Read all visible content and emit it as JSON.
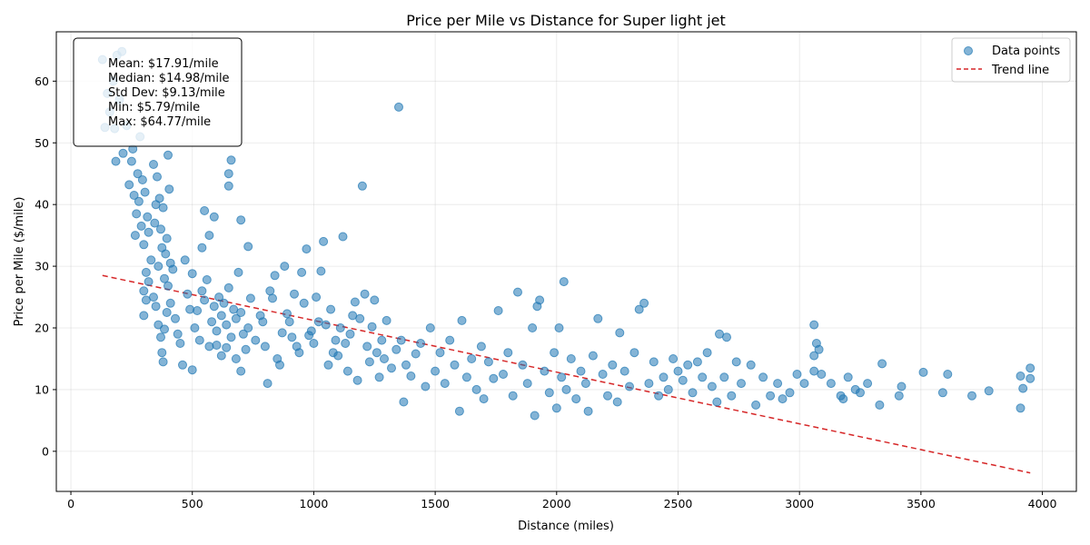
{
  "chart_data": {
    "type": "scatter",
    "title": "Price per Mile vs Distance for Super light jet",
    "xlabel": "Distance (miles)",
    "ylabel": "Price per Mile ($/mile)",
    "xlim": [
      -60,
      4140
    ],
    "ylim": [
      -6.5,
      68
    ],
    "x_ticks": [
      0,
      500,
      1000,
      1500,
      2000,
      2500,
      3000,
      3500,
      4000
    ],
    "y_ticks": [
      0,
      10,
      20,
      30,
      40,
      50,
      60
    ],
    "grid": true,
    "legend_position": "top-right",
    "legend": [
      {
        "label": "Data points",
        "marker": "circle",
        "color": "#1f77b4"
      },
      {
        "label": "Trend line",
        "marker": "dashed-line",
        "color": "#d62728"
      }
    ],
    "stats": [
      "Mean: $17.91/mile",
      "Median: $14.98/mile",
      "Std Dev: $9.13/mile",
      "Min: $5.79/mile",
      "Max: $64.77/mile"
    ],
    "trend_line": {
      "x": [
        130,
        3950
      ],
      "y": [
        28.5,
        -3.5
      ]
    },
    "point_color": "#1f77b4",
    "points": [
      [
        130,
        63.5
      ],
      [
        140,
        52.5
      ],
      [
        150,
        58
      ],
      [
        160,
        55
      ],
      [
        175,
        60
      ],
      [
        180,
        52.3
      ],
      [
        185,
        47
      ],
      [
        190,
        64.2
      ],
      [
        200,
        57
      ],
      [
        210,
        64.8
      ],
      [
        215,
        48.3
      ],
      [
        230,
        52.8
      ],
      [
        240,
        43.2
      ],
      [
        250,
        47
      ],
      [
        255,
        49
      ],
      [
        260,
        41.5
      ],
      [
        265,
        35
      ],
      [
        270,
        38.5
      ],
      [
        275,
        45
      ],
      [
        280,
        40.5
      ],
      [
        285,
        51
      ],
      [
        290,
        36.5
      ],
      [
        295,
        44
      ],
      [
        300,
        33.5
      ],
      [
        305,
        42
      ],
      [
        310,
        29
      ],
      [
        315,
        38
      ],
      [
        320,
        35.5
      ],
      [
        330,
        31
      ],
      [
        340,
        46.5
      ],
      [
        345,
        37
      ],
      [
        350,
        40
      ],
      [
        355,
        44.5
      ],
      [
        360,
        30
      ],
      [
        365,
        41
      ],
      [
        370,
        36
      ],
      [
        375,
        33
      ],
      [
        380,
        39.5
      ],
      [
        385,
        28
      ],
      [
        390,
        32
      ],
      [
        395,
        34.5
      ],
      [
        400,
        48
      ],
      [
        405,
        42.5
      ],
      [
        410,
        30.5
      ],
      [
        300,
        26
      ],
      [
        300,
        22
      ],
      [
        310,
        24.5
      ],
      [
        320,
        27.5
      ],
      [
        340,
        25
      ],
      [
        350,
        23.5
      ],
      [
        360,
        20.5
      ],
      [
        370,
        18.5
      ],
      [
        375,
        16
      ],
      [
        380,
        14.5
      ],
      [
        385,
        19.8
      ],
      [
        395,
        22.5
      ],
      [
        400,
        26.8
      ],
      [
        410,
        24
      ],
      [
        420,
        29.5
      ],
      [
        430,
        21.5
      ],
      [
        440,
        19
      ],
      [
        450,
        17.5
      ],
      [
        460,
        14
      ],
      [
        470,
        31
      ],
      [
        480,
        25.5
      ],
      [
        490,
        23
      ],
      [
        500,
        28.8
      ],
      [
        510,
        20
      ],
      [
        520,
        22.8
      ],
      [
        530,
        18
      ],
      [
        540,
        26
      ],
      [
        550,
        24.5
      ],
      [
        560,
        27.8
      ],
      [
        570,
        17
      ],
      [
        580,
        21
      ],
      [
        590,
        23.5
      ],
      [
        600,
        19.5
      ],
      [
        610,
        25
      ],
      [
        620,
        22
      ],
      [
        630,
        24
      ],
      [
        640,
        20.5
      ],
      [
        650,
        26.5
      ],
      [
        660,
        18.5
      ],
      [
        670,
        23
      ],
      [
        680,
        21.5
      ],
      [
        690,
        29
      ],
      [
        700,
        22.5
      ],
      [
        710,
        19
      ],
      [
        720,
        16.5
      ],
      [
        730,
        20
      ],
      [
        740,
        24.8
      ],
      [
        500,
        13.2
      ],
      [
        550,
        39
      ],
      [
        570,
        35
      ],
      [
        590,
        38
      ],
      [
        540,
        33
      ],
      [
        600,
        17.2
      ],
      [
        620,
        15.5
      ],
      [
        640,
        16.8
      ],
      [
        650,
        43
      ],
      [
        650,
        45
      ],
      [
        660,
        47.2
      ],
      [
        680,
        15
      ],
      [
        700,
        37.5
      ],
      [
        700,
        13
      ],
      [
        730,
        33.2
      ],
      [
        760,
        18
      ],
      [
        780,
        22
      ],
      [
        790,
        21
      ],
      [
        800,
        17
      ],
      [
        810,
        11
      ],
      [
        820,
        26
      ],
      [
        830,
        24.8
      ],
      [
        840,
        28.5
      ],
      [
        850,
        15
      ],
      [
        860,
        14
      ],
      [
        870,
        19.2
      ],
      [
        880,
        30
      ],
      [
        890,
        22.3
      ],
      [
        900,
        21
      ],
      [
        910,
        18.5
      ],
      [
        920,
        25.5
      ],
      [
        930,
        17
      ],
      [
        940,
        16
      ],
      [
        950,
        29
      ],
      [
        960,
        24
      ],
      [
        970,
        32.8
      ],
      [
        980,
        18.8
      ],
      [
        990,
        19.5
      ],
      [
        1000,
        17.5
      ],
      [
        1010,
        25
      ],
      [
        1020,
        21
      ],
      [
        1030,
        29.2
      ],
      [
        1040,
        34
      ],
      [
        1050,
        20.5
      ],
      [
        1060,
        14
      ],
      [
        1070,
        23
      ],
      [
        1080,
        16
      ],
      [
        1090,
        18
      ],
      [
        1100,
        15.5
      ],
      [
        1110,
        20
      ],
      [
        1120,
        34.8
      ],
      [
        1130,
        17.5
      ],
      [
        1140,
        13
      ],
      [
        1150,
        19
      ],
      [
        1160,
        22
      ],
      [
        1170,
        24.2
      ],
      [
        1180,
        11.5
      ],
      [
        1190,
        21.5
      ],
      [
        1200,
        43
      ],
      [
        1210,
        25.5
      ],
      [
        1220,
        17
      ],
      [
        1230,
        14.5
      ],
      [
        1240,
        20.2
      ],
      [
        1250,
        24.5
      ],
      [
        1260,
        16
      ],
      [
        1270,
        12
      ],
      [
        1280,
        18
      ],
      [
        1290,
        15
      ],
      [
        1300,
        21.2
      ],
      [
        1320,
        13.5
      ],
      [
        1340,
        16.5
      ],
      [
        1350,
        55.8
      ],
      [
        1360,
        18
      ],
      [
        1370,
        8
      ],
      [
        1380,
        14
      ],
      [
        1400,
        12.2
      ],
      [
        1420,
        15.8
      ],
      [
        1440,
        17.5
      ],
      [
        1460,
        10.5
      ],
      [
        1480,
        20
      ],
      [
        1500,
        13
      ],
      [
        1520,
        16
      ],
      [
        1540,
        11
      ],
      [
        1560,
        18
      ],
      [
        1580,
        14
      ],
      [
        1600,
        6.5
      ],
      [
        1610,
        21.2
      ],
      [
        1630,
        12
      ],
      [
        1650,
        15
      ],
      [
        1670,
        10
      ],
      [
        1690,
        17
      ],
      [
        1700,
        8.5
      ],
      [
        1720,
        14.5
      ],
      [
        1740,
        11.8
      ],
      [
        1760,
        22.8
      ],
      [
        1780,
        12.5
      ],
      [
        1800,
        16
      ],
      [
        1820,
        9
      ],
      [
        1840,
        25.8
      ],
      [
        1860,
        14
      ],
      [
        1880,
        11
      ],
      [
        1900,
        20
      ],
      [
        1910,
        5.8
      ],
      [
        1920,
        23.5
      ],
      [
        1930,
        24.5
      ],
      [
        1950,
        13
      ],
      [
        1970,
        9.5
      ],
      [
        1990,
        16
      ],
      [
        2000,
        7
      ],
      [
        2010,
        20
      ],
      [
        2020,
        12
      ],
      [
        2030,
        27.5
      ],
      [
        2040,
        10
      ],
      [
        2060,
        15
      ],
      [
        2080,
        8.5
      ],
      [
        2100,
        13
      ],
      [
        2120,
        11
      ],
      [
        2130,
        6.5
      ],
      [
        2150,
        15.5
      ],
      [
        2170,
        21.5
      ],
      [
        2190,
        12.5
      ],
      [
        2210,
        9
      ],
      [
        2230,
        14
      ],
      [
        2250,
        8
      ],
      [
        2260,
        19.2
      ],
      [
        2280,
        13
      ],
      [
        2300,
        10.5
      ],
      [
        2320,
        16
      ],
      [
        2340,
        23
      ],
      [
        2360,
        24
      ],
      [
        2380,
        11
      ],
      [
        2400,
        14.5
      ],
      [
        2420,
        9
      ],
      [
        2440,
        12
      ],
      [
        2460,
        10
      ],
      [
        2480,
        15
      ],
      [
        2500,
        13
      ],
      [
        2520,
        11.5
      ],
      [
        2540,
        14
      ],
      [
        2560,
        9.5
      ],
      [
        2580,
        14.5
      ],
      [
        2600,
        12
      ],
      [
        2620,
        16
      ],
      [
        2640,
        10.5
      ],
      [
        2660,
        8
      ],
      [
        2670,
        19
      ],
      [
        2690,
        12
      ],
      [
        2700,
        18.5
      ],
      [
        2720,
        9
      ],
      [
        2740,
        14.5
      ],
      [
        2760,
        11
      ],
      [
        2800,
        14
      ],
      [
        2820,
        7.5
      ],
      [
        2850,
        12
      ],
      [
        2880,
        9
      ],
      [
        2910,
        11
      ],
      [
        2930,
        8.5
      ],
      [
        2960,
        9.5
      ],
      [
        2990,
        12.5
      ],
      [
        3020,
        11
      ],
      [
        3060,
        20.5
      ],
      [
        3070,
        17.5
      ],
      [
        3080,
        16.5
      ],
      [
        3060,
        13
      ],
      [
        3060,
        15.5
      ],
      [
        3090,
        12.5
      ],
      [
        3130,
        11
      ],
      [
        3170,
        9
      ],
      [
        3180,
        8.5
      ],
      [
        3200,
        12
      ],
      [
        3230,
        10
      ],
      [
        3250,
        9.5
      ],
      [
        3280,
        11
      ],
      [
        3330,
        7.5
      ],
      [
        3340,
        14.2
      ],
      [
        3410,
        9
      ],
      [
        3420,
        10.5
      ],
      [
        3510,
        12.8
      ],
      [
        3590,
        9.5
      ],
      [
        3610,
        12.5
      ],
      [
        3710,
        9
      ],
      [
        3780,
        9.8
      ],
      [
        3910,
        7
      ],
      [
        3910,
        12.2
      ],
      [
        3920,
        10.2
      ],
      [
        3950,
        13.5
      ],
      [
        3950,
        11.8
      ]
    ]
  }
}
